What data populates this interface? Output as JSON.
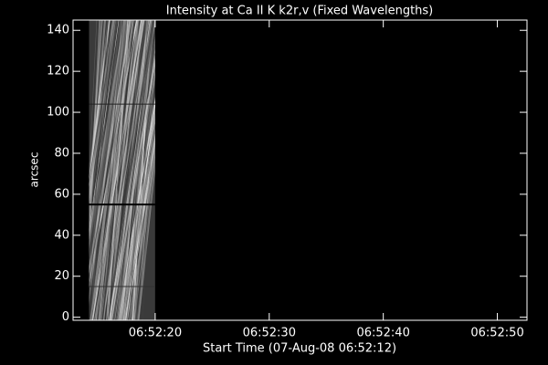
{
  "chart_data": {
    "type": "image",
    "title": "Intensity at Ca II K k2r,v (Fixed Wavelengths)",
    "x_label": "Start Time (07-Aug-08 06:52:12)",
    "y_label": "arcsec",
    "xlim": [
      0.8,
      40.6
    ],
    "xticks": [
      {
        "value": 8,
        "label": "06:52:20"
      },
      {
        "value": 18,
        "label": "06:52:30"
      },
      {
        "value": 28,
        "label": "06:52:40"
      },
      {
        "value": 38,
        "label": "06:52:50"
      }
    ],
    "ylim": [
      -1.5,
      145
    ],
    "yticks": [
      0,
      20,
      40,
      60,
      80,
      100,
      120,
      140
    ],
    "image_x": [
      2.2,
      8.0
    ],
    "colormap": "gray"
  }
}
